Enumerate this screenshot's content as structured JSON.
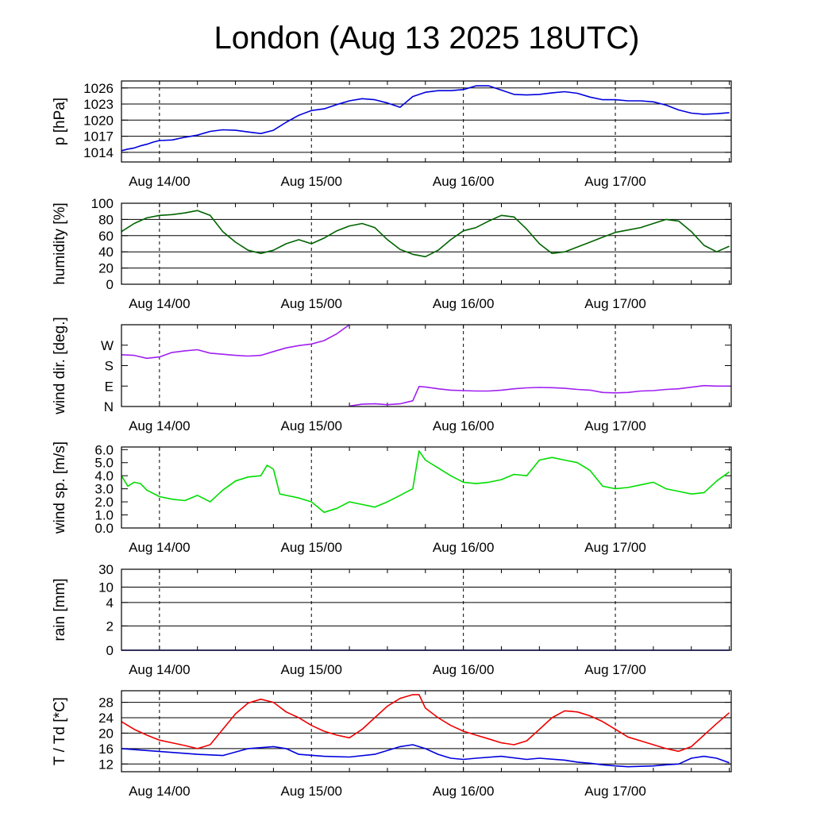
{
  "title": "London (Aug 13 2025 18UTC)",
  "chart_data": [
    {
      "type": "line",
      "ylabel": "p [hPa]",
      "ylim": [
        1012.2,
        1027.3
      ],
      "yticks": [
        1014,
        1017,
        1020,
        1023,
        1026
      ],
      "grid": true,
      "xticks": [
        "Aug 14/00",
        "Aug 15/00",
        "Aug 16/00",
        "Aug 17/00"
      ],
      "series": [
        {
          "color": "#0000dd",
          "x": [
            0,
            1,
            2,
            3,
            4,
            5,
            6,
            8,
            10,
            12,
            14,
            16,
            18,
            20,
            22,
            24,
            26,
            28,
            30,
            32,
            34,
            36,
            38,
            40,
            42,
            44,
            46,
            48,
            50,
            52,
            54,
            56,
            58,
            60,
            62,
            64,
            66,
            68,
            70,
            72,
            74,
            76,
            78,
            80,
            82,
            84,
            86,
            88,
            90,
            92,
            94,
            96
          ],
          "values": [
            1014.3,
            1014.6,
            1014.8,
            1015.2,
            1015.5,
            1015.9,
            1016.2,
            1016.3,
            1016.8,
            1017.2,
            1017.9,
            1018.2,
            1018.1,
            1017.8,
            1017.5,
            1018.1,
            1019.6,
            1020.9,
            1021.8,
            1022.1,
            1022.9,
            1023.6,
            1024.0,
            1023.8,
            1023.2,
            1022.4,
            1024.4,
            1025.2,
            1025.5,
            1025.5,
            1025.7,
            1026.4,
            1026.4,
            1025.6,
            1024.8,
            1024.7,
            1024.8,
            1025.1,
            1025.3,
            1025.0,
            1024.3,
            1023.8,
            1023.8,
            1023.6,
            1023.6,
            1023.4,
            1022.8,
            1021.9,
            1021.3,
            1021.1,
            1021.2,
            1021.4
          ]
        }
      ]
    },
    {
      "type": "line",
      "ylabel": "humidity [%]",
      "ylim": [
        0,
        100
      ],
      "yticks": [
        0,
        20,
        40,
        60,
        80,
        100
      ],
      "grid": true,
      "xticks": [
        "Aug 14/00",
        "Aug 15/00",
        "Aug 16/00",
        "Aug 17/00"
      ],
      "series": [
        {
          "color": "#006400",
          "x": [
            0,
            2,
            4,
            6,
            8,
            10,
            12,
            14,
            16,
            18,
            20,
            22,
            24,
            26,
            28,
            30,
            32,
            34,
            36,
            38,
            40,
            42,
            44,
            46,
            48,
            50,
            52,
            54,
            56,
            58,
            60,
            62,
            64,
            66,
            68,
            70,
            72,
            74,
            76,
            78,
            80,
            82,
            84,
            86,
            88,
            90,
            92,
            94,
            96
          ],
          "values": [
            65,
            75,
            82,
            85,
            86,
            88,
            91,
            85,
            65,
            52,
            42,
            38,
            42,
            50,
            55,
            50,
            57,
            66,
            72,
            75,
            70,
            55,
            43,
            37,
            34,
            42,
            55,
            66,
            70,
            78,
            85,
            83,
            68,
            50,
            38,
            40,
            46,
            52,
            58,
            64,
            67,
            70,
            75,
            80,
            78,
            65,
            48,
            40,
            47
          ]
        }
      ]
    },
    {
      "type": "line",
      "ylabel": "wind dir. [deg.]",
      "ylim": [
        0,
        360
      ],
      "yticks": [
        0,
        90,
        180,
        270
      ],
      "ytick_labels": [
        "N",
        "E",
        "S",
        "W"
      ],
      "grid": false,
      "xticks": [
        "Aug 14/00",
        "Aug 15/00",
        "Aug 16/00",
        "Aug 17/00"
      ],
      "series": [
        {
          "color": "#a020f0",
          "x": [
            0,
            2,
            4,
            6,
            8,
            10,
            12,
            14,
            16,
            18,
            20,
            22,
            24,
            26,
            28,
            30,
            32,
            34,
            36
          ],
          "values": [
            228,
            225,
            212,
            218,
            238,
            245,
            250,
            235,
            230,
            225,
            222,
            225,
            242,
            258,
            268,
            275,
            290,
            320,
            360
          ]
        },
        {
          "color": "#a020f0",
          "x": [
            36,
            38,
            40,
            42,
            44,
            46,
            47,
            48,
            50,
            52,
            54,
            56,
            58,
            60,
            62,
            64,
            66,
            68,
            70,
            72,
            74,
            76,
            78,
            80,
            82,
            84,
            86,
            88,
            90,
            92,
            94,
            96
          ],
          "values": [
            2,
            10,
            12,
            8,
            12,
            25,
            88,
            86,
            78,
            72,
            70,
            68,
            68,
            72,
            78,
            82,
            84,
            83,
            80,
            75,
            72,
            62,
            60,
            62,
            68,
            70,
            75,
            78,
            85,
            92,
            90,
            90
          ]
        }
      ]
    },
    {
      "type": "line",
      "ylabel": "wind sp. [m/s]",
      "ylim": [
        0,
        6.2
      ],
      "yticks": [
        0,
        1,
        2,
        3,
        4,
        5,
        6
      ],
      "ytick_labels": [
        "0.0",
        "1.0",
        "2.0",
        "3.0",
        "4.0",
        "5.0",
        "6.0"
      ],
      "grid": false,
      "xticks": [
        "Aug 14/00",
        "Aug 15/00",
        "Aug 16/00",
        "Aug 17/00"
      ],
      "series": [
        {
          "color": "#00dd00",
          "x": [
            0,
            1,
            2,
            3,
            4,
            6,
            8,
            10,
            12,
            14,
            16,
            18,
            20,
            22,
            23,
            24,
            25,
            26,
            28,
            30,
            32,
            34,
            36,
            38,
            40,
            42,
            44,
            46,
            47,
            48,
            50,
            52,
            54,
            56,
            58,
            60,
            62,
            64,
            66,
            68,
            70,
            72,
            74,
            76,
            78,
            80,
            82,
            84,
            86,
            88,
            90,
            92,
            94,
            96
          ],
          "values": [
            4.0,
            3.2,
            3.5,
            3.4,
            2.9,
            2.4,
            2.2,
            2.1,
            2.5,
            2.0,
            2.9,
            3.6,
            3.9,
            4.0,
            4.8,
            4.5,
            2.6,
            2.5,
            2.3,
            2.0,
            1.2,
            1.5,
            2.0,
            1.8,
            1.6,
            2.0,
            2.5,
            3.0,
            5.9,
            5.2,
            4.6,
            4.0,
            3.5,
            3.4,
            3.5,
            3.7,
            4.1,
            4.0,
            5.2,
            5.4,
            5.2,
            5.0,
            4.4,
            3.2,
            3.0,
            3.1,
            3.3,
            3.5,
            3.0,
            2.8,
            2.6,
            2.7,
            3.6,
            4.3
          ]
        }
      ]
    },
    {
      "type": "line",
      "ylabel": "rain [mm]",
      "scale": "nonlinear",
      "ylim": [
        0,
        30
      ],
      "yticks": [
        0,
        2,
        4,
        10,
        30
      ],
      "grid": true,
      "xticks": [
        "Aug 14/00",
        "Aug 15/00",
        "Aug 16/00",
        "Aug 17/00"
      ],
      "series": [
        {
          "color": "#0000dd",
          "x": [
            0,
            96
          ],
          "values": [
            0,
            0
          ]
        }
      ]
    },
    {
      "type": "line",
      "ylabel": "T / Td [*C]",
      "ylim": [
        10,
        31
      ],
      "yticks": [
        12,
        16,
        20,
        24,
        28
      ],
      "grid": true,
      "xticks": [
        "Aug 14/00",
        "Aug 15/00",
        "Aug 16/00",
        "Aug 17/00"
      ],
      "series": [
        {
          "color": "#ee0000",
          "x": [
            0,
            2,
            4,
            6,
            8,
            10,
            12,
            14,
            16,
            18,
            20,
            22,
            24,
            26,
            28,
            30,
            32,
            34,
            36,
            38,
            40,
            42,
            44,
            46,
            47,
            48,
            50,
            52,
            54,
            56,
            58,
            60,
            62,
            64,
            66,
            68,
            70,
            72,
            74,
            76,
            78,
            80,
            82,
            84,
            86,
            88,
            90,
            92,
            94,
            96
          ],
          "values": [
            23,
            21,
            19.5,
            18.2,
            17.5,
            16.8,
            16,
            17,
            21,
            25,
            27.8,
            28.8,
            28,
            25.5,
            24,
            22,
            20.5,
            19.5,
            18.8,
            21,
            24,
            27,
            29,
            30,
            30,
            26.5,
            24,
            22,
            20.5,
            19.5,
            18.5,
            17.5,
            17,
            18,
            21,
            24,
            25.8,
            25.5,
            24.5,
            23,
            21,
            19,
            18,
            17,
            16,
            15.3,
            16.5,
            19.5,
            22.5,
            25.3
          ]
        },
        {
          "color": "#0000dd",
          "x": [
            0,
            4,
            8,
            12,
            16,
            20,
            24,
            26,
            28,
            32,
            36,
            40,
            44,
            46,
            48,
            50,
            52,
            54,
            56,
            60,
            64,
            66,
            70,
            72,
            74,
            76,
            78,
            80,
            84,
            86,
            88,
            90,
            92,
            94,
            96
          ],
          "values": [
            16,
            15.5,
            15,
            14.5,
            14.2,
            16,
            16.5,
            16,
            14.5,
            14,
            13.8,
            14.5,
            16.5,
            17,
            16,
            14.5,
            13.5,
            13.2,
            13.5,
            14,
            13.2,
            13.5,
            13,
            12.5,
            12.2,
            11.8,
            11.5,
            11.3,
            11.5,
            11.8,
            12,
            13.5,
            14,
            13.5,
            12.3
          ]
        }
      ]
    }
  ]
}
